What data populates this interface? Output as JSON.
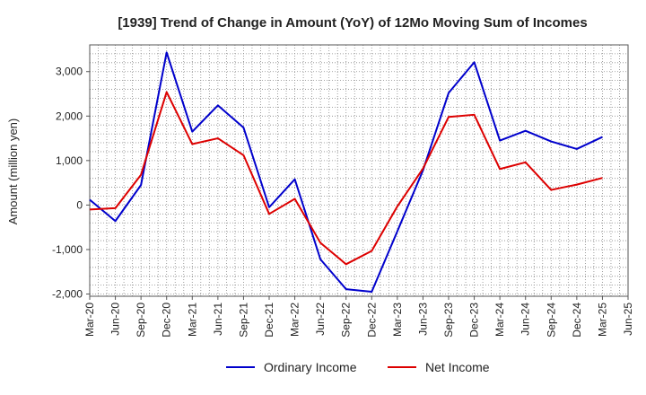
{
  "chart_data": {
    "type": "line",
    "title": "[1939]  Trend of Change in Amount (YoY) of 12Mo Moving Sum of Incomes",
    "ylabel": "Amount (million yen)",
    "xlabel": "",
    "ylim": [
      -2050,
      3600
    ],
    "yticks": [
      -2000,
      -1000,
      0,
      1000,
      2000,
      3000
    ],
    "ytick_labels": [
      "-2,000",
      "-1,000",
      "0",
      "1,000",
      "2,000",
      "3,000"
    ],
    "x_tick_labels": [
      "Mar-20",
      "Jun-20",
      "Sep-20",
      "Dec-20",
      "Mar-21",
      "Jun-21",
      "Sep-21",
      "Dec-21",
      "Mar-22",
      "Jun-22",
      "Sep-22",
      "Dec-22",
      "Mar-23",
      "Jun-23",
      "Sep-23",
      "Dec-23",
      "Mar-24",
      "Jun-24",
      "Sep-24",
      "Dec-24",
      "Mar-25",
      "Jun-25"
    ],
    "grid": true,
    "legend_position": "bottom-center",
    "series": [
      {
        "name": "Ordinary Income",
        "color": "#0000cc",
        "values": [
          120,
          -360,
          450,
          3430,
          1650,
          2240,
          1740,
          -50,
          580,
          -1220,
          -1890,
          -1950,
          -590,
          780,
          2520,
          3210,
          1450,
          1670,
          1430,
          1260,
          1530
        ]
      },
      {
        "name": "Net Income",
        "color": "#dd0000",
        "values": [
          -100,
          -70,
          680,
          2540,
          1370,
          1500,
          1120,
          -200,
          140,
          -850,
          -1330,
          -1030,
          -30,
          820,
          1980,
          2030,
          810,
          960,
          340,
          460,
          610
        ]
      }
    ]
  }
}
